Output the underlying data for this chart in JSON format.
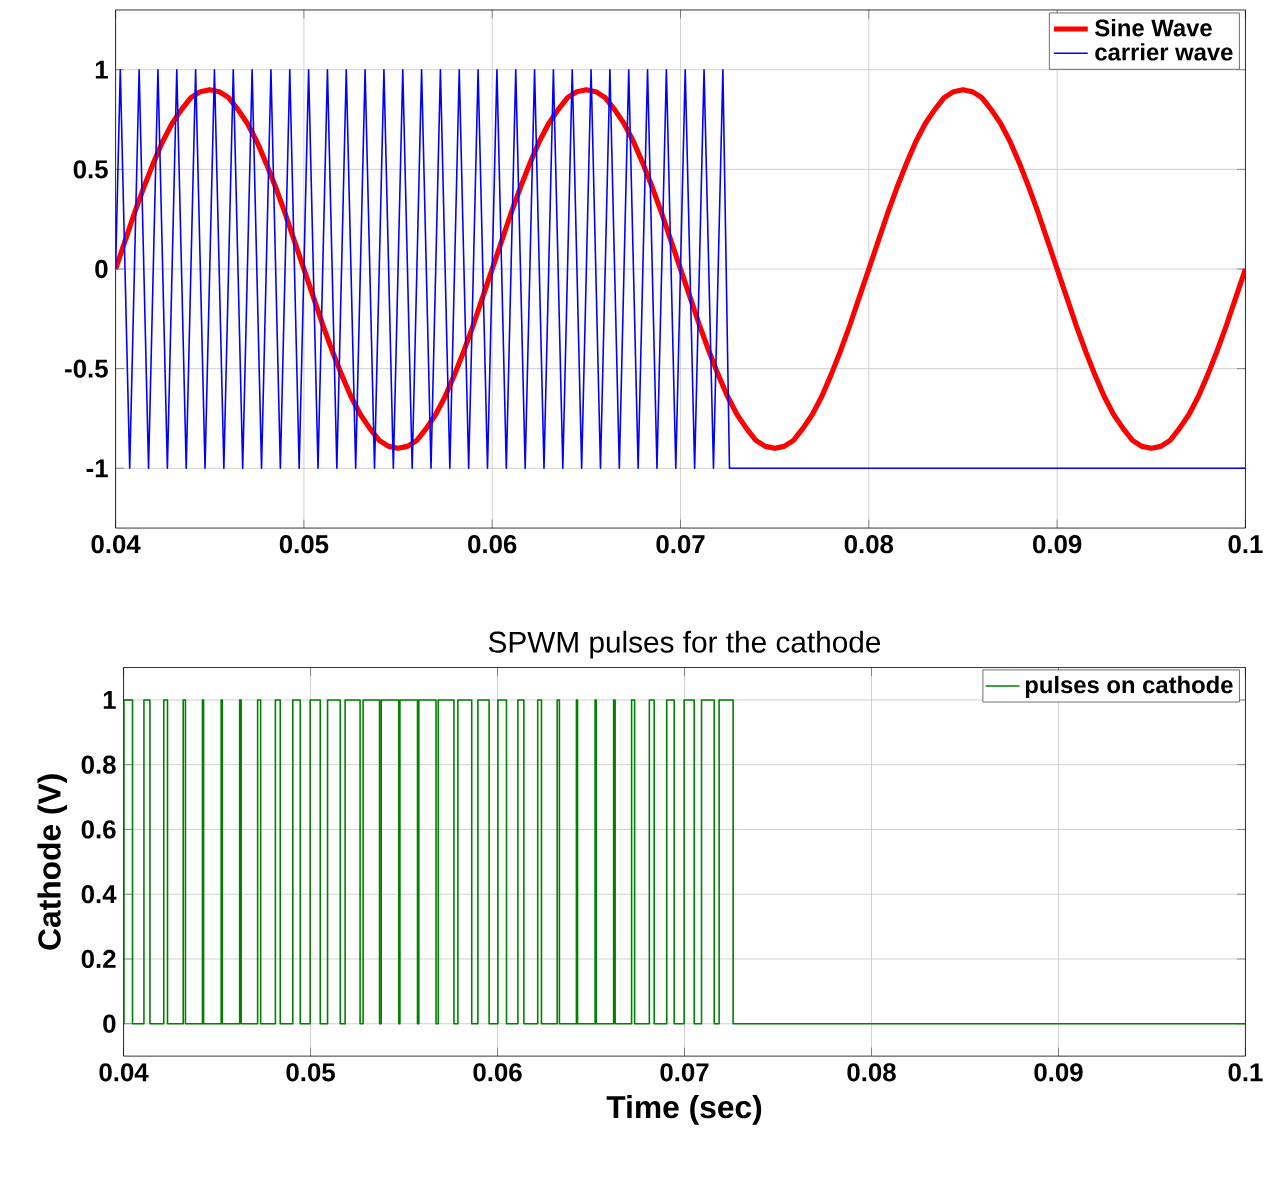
{
  "chart_data": [
    {
      "type": "line",
      "xlim": [
        0.04,
        0.1
      ],
      "ylim": [
        -1.3,
        1.3
      ],
      "xticks": [
        0.04,
        0.05,
        0.06,
        0.07,
        0.08,
        0.09,
        0.1
      ],
      "yticks": [
        -1,
        -0.5,
        0,
        0.5,
        1
      ],
      "grid": true,
      "legend": "top right",
      "series": [
        {
          "name": "Sine Wave",
          "color": "#ff0000",
          "x": [
            0.04,
            0.0405,
            0.041,
            0.0415,
            0.042,
            0.0425,
            0.043,
            0.0435,
            0.044,
            0.0445,
            0.045,
            0.0455,
            0.046,
            0.0465,
            0.047,
            0.0475,
            0.048,
            0.0485,
            0.049,
            0.0495,
            0.05,
            0.0505,
            0.051,
            0.0515,
            0.052,
            0.0525,
            0.053,
            0.0535,
            0.054,
            0.0545,
            0.055,
            0.0555,
            0.056,
            0.0565,
            0.057,
            0.0575,
            0.058,
            0.0585,
            0.059,
            0.0595,
            0.06,
            0.0605,
            0.061,
            0.0615,
            0.062,
            0.0625,
            0.063,
            0.0635,
            0.064,
            0.0645,
            0.065,
            0.0655,
            0.066,
            0.0665,
            0.067,
            0.0675,
            0.068,
            0.0685,
            0.069,
            0.0695,
            0.07,
            0.0705,
            0.071,
            0.0715,
            0.072,
            0.0725,
            0.073,
            0.0735,
            0.074,
            0.0745,
            0.075,
            0.0755,
            0.076,
            0.0765,
            0.077,
            0.0775,
            0.078,
            0.0785,
            0.079,
            0.0795,
            0.08,
            0.0805,
            0.081,
            0.0815,
            0.082,
            0.0825,
            0.083,
            0.0835,
            0.084,
            0.0845,
            0.085,
            0.0855,
            0.086,
            0.0865,
            0.087,
            0.0875,
            0.088,
            0.0885,
            0.089,
            0.0895,
            0.09,
            0.0905,
            0.091,
            0.0915,
            0.092,
            0.0925,
            0.093,
            0.0935,
            0.094,
            0.0945,
            0.095,
            0.0955,
            0.096,
            0.0965,
            0.097,
            0.0975,
            0.098,
            0.0985,
            0.099,
            0.0995,
            0.1
          ],
          "values": [
            0,
            0.14,
            0.28,
            0.41,
            0.53,
            0.64,
            0.73,
            0.8,
            0.86,
            0.89,
            0.9,
            0.89,
            0.86,
            0.8,
            0.73,
            0.64,
            0.53,
            0.41,
            0.28,
            0.14,
            0,
            -0.14,
            -0.28,
            -0.41,
            -0.53,
            -0.64,
            -0.73,
            -0.8,
            -0.86,
            -0.89,
            -0.9,
            -0.89,
            -0.86,
            -0.8,
            -0.73,
            -0.64,
            -0.53,
            -0.41,
            -0.28,
            -0.14,
            0,
            0.14,
            0.28,
            0.41,
            0.53,
            0.64,
            0.73,
            0.8,
            0.86,
            0.89,
            0.9,
            0.89,
            0.86,
            0.8,
            0.73,
            0.64,
            0.53,
            0.41,
            0.28,
            0.14,
            0,
            -0.14,
            -0.28,
            -0.41,
            -0.53,
            -0.64,
            -0.73,
            -0.8,
            -0.86,
            -0.89,
            -0.9,
            -0.89,
            -0.86,
            -0.8,
            -0.73,
            -0.64,
            -0.53,
            -0.41,
            -0.28,
            -0.14,
            0,
            0.14,
            0.28,
            0.41,
            0.53,
            0.64,
            0.73,
            0.8,
            0.86,
            0.89,
            0.9,
            0.89,
            0.86,
            0.8,
            0.73,
            0.64,
            0.53,
            0.41,
            0.28,
            0.14,
            0,
            -0.14,
            -0.28,
            -0.41,
            -0.53,
            -0.64,
            -0.73,
            -0.8,
            -0.86,
            -0.89,
            -0.9,
            -0.89,
            -0.86,
            -0.8,
            -0.73,
            -0.64,
            -0.53,
            -0.41,
            -0.28,
            -0.14,
            0
          ]
        },
        {
          "name": "carrier wave",
          "color": "#0000ff",
          "x": [
            0.04,
            0.04025,
            0.04075,
            0.04125,
            0.04175,
            0.04225,
            0.04275,
            0.04325,
            0.04375,
            0.04425,
            0.04475,
            0.04525,
            0.04575,
            0.04625,
            0.04675,
            0.04725,
            0.04775,
            0.04825,
            0.04875,
            0.04925,
            0.04975,
            0.05025,
            0.05075,
            0.05125,
            0.05175,
            0.05225,
            0.05275,
            0.05325,
            0.05375,
            0.05425,
            0.05475,
            0.05525,
            0.05575,
            0.05625,
            0.05675,
            0.05725,
            0.05775,
            0.05825,
            0.05875,
            0.05925,
            0.05975,
            0.06025,
            0.06075,
            0.06125,
            0.06175,
            0.06225,
            0.06275,
            0.06325,
            0.06375,
            0.06425,
            0.06475,
            0.06525,
            0.06575,
            0.06625,
            0.06675,
            0.06725,
            0.06775,
            0.06825,
            0.06875,
            0.06925,
            0.06975,
            0.07025,
            0.07075,
            0.07125,
            0.07175,
            0.07225,
            0.0726,
            0.1
          ],
          "values": [
            0,
            1,
            -1,
            1,
            -1,
            1,
            -1,
            1,
            -1,
            1,
            -1,
            1,
            -1,
            1,
            -1,
            1,
            -1,
            1,
            -1,
            1,
            -1,
            1,
            -1,
            1,
            -1,
            1,
            -1,
            1,
            -1,
            1,
            -1,
            1,
            -1,
            1,
            -1,
            1,
            -1,
            1,
            -1,
            1,
            -1,
            1,
            -1,
            1,
            -1,
            1,
            -1,
            1,
            -1,
            1,
            -1,
            1,
            -1,
            1,
            -1,
            1,
            -1,
            1,
            -1,
            1,
            -1,
            1,
            -1,
            1,
            -1,
            1,
            -1,
            -1
          ]
        }
      ]
    },
    {
      "type": "line",
      "title": "SPWM pulses for the cathode",
      "xlabel": "Time (sec)",
      "ylabel": "Cathode (V)",
      "xlim": [
        0.04,
        0.1
      ],
      "ylim": [
        -0.1,
        1.1
      ],
      "xticks": [
        0.04,
        0.05,
        0.06,
        0.07,
        0.08,
        0.09,
        0.1
      ],
      "yticks": [
        0,
        0.2,
        0.4,
        0.6,
        0.8,
        1
      ],
      "grid": true,
      "legend": "top right",
      "series": [
        {
          "name": "pulses on cathode",
          "type": "step",
          "color": "#008000",
          "x": [
            0.04,
            0.04002,
            0.04048,
            0.04109,
            0.04141,
            0.04215,
            0.04235,
            0.04319,
            0.04331,
            0.04422,
            0.04428,
            0.04522,
            0.04528,
            0.04621,
            0.04629,
            0.04717,
            0.04733,
            0.04812,
            0.04838,
            0.04905,
            0.04945,
            0.04998,
            0.05052,
            0.05091,
            0.05159,
            0.05185,
            0.05265,
            0.05281,
            0.05369,
            0.05378,
            0.05472,
            0.05478,
            0.05572,
            0.05579,
            0.05671,
            0.05683,
            0.05767,
            0.05788,
            0.05862,
            0.05895,
            0.05955,
            0.06002,
            0.06048,
            0.06109,
            0.06141,
            0.06215,
            0.06235,
            0.06319,
            0.06331,
            0.06422,
            0.06428,
            0.06522,
            0.06528,
            0.06621,
            0.06629,
            0.06717,
            0.06733,
            0.06812,
            0.06838,
            0.06905,
            0.06945,
            0.06998,
            0.07052,
            0.07091,
            0.07159,
            0.07185,
            0.0726,
            0.1
          ],
          "values": [
            0,
            1,
            0,
            1,
            0,
            1,
            0,
            1,
            0,
            1,
            0,
            1,
            0,
            1,
            0,
            1,
            0,
            1,
            0,
            1,
            0,
            1,
            0,
            1,
            0,
            1,
            0,
            1,
            0,
            1,
            0,
            1,
            0,
            1,
            0,
            1,
            0,
            1,
            0,
            1,
            0,
            1,
            0,
            1,
            0,
            1,
            0,
            1,
            0,
            1,
            0,
            1,
            0,
            1,
            0,
            1,
            0,
            1,
            0,
            1,
            0,
            1,
            0,
            1,
            0,
            1,
            0,
            0
          ]
        }
      ]
    }
  ]
}
